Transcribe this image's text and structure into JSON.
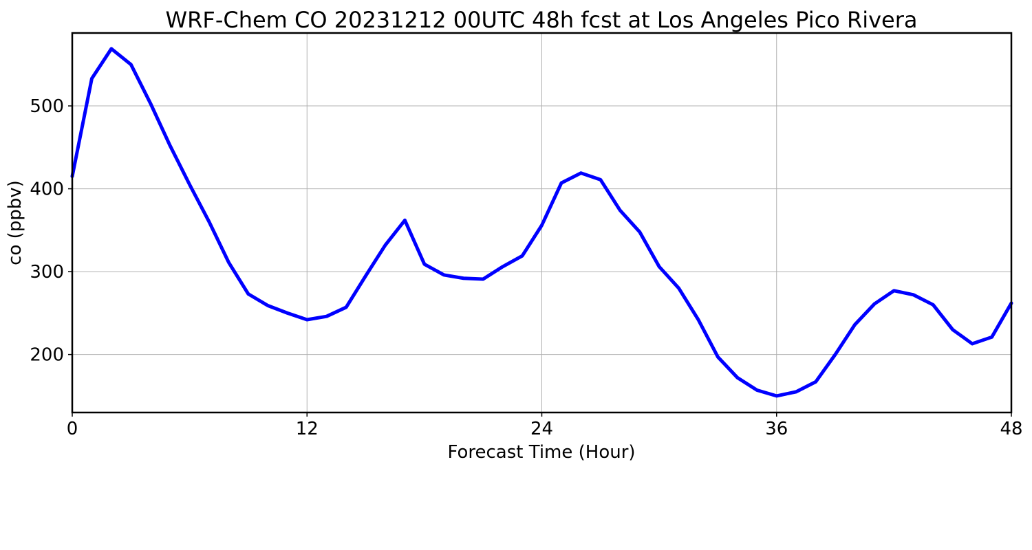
{
  "chart_data": {
    "type": "line",
    "title": "WRF-Chem CO  20231212 00UTC 48h fcst at Los Angeles Pico Rivera",
    "xlabel": "Forecast Time (Hour)",
    "ylabel": "co  (ppbv)",
    "xlim": [
      0,
      48
    ],
    "ylim": [
      130,
      588
    ],
    "xticks": [
      0,
      12,
      24,
      36,
      48
    ],
    "yticks": [
      200,
      300,
      400,
      500
    ],
    "grid": true,
    "line_color": "#0000ff",
    "series": [
      {
        "x": [
          0,
          1,
          2,
          3,
          4,
          5,
          6,
          7,
          8,
          9,
          10,
          11,
          12,
          13,
          14,
          15,
          16,
          17,
          18,
          19,
          20,
          21,
          22,
          23,
          24,
          25,
          26,
          27,
          28,
          29,
          30,
          31,
          32,
          33,
          34,
          35,
          36,
          37,
          38,
          39,
          40,
          41,
          42,
          43,
          44,
          45,
          46,
          47,
          48
        ],
        "values": [
          415,
          533,
          569,
          550,
          503,
          452,
          405,
          360,
          311,
          273,
          259,
          250,
          242,
          246,
          257,
          295,
          332,
          362,
          309,
          296,
          292,
          291,
          306,
          319,
          356,
          407,
          419,
          411,
          374,
          348,
          306,
          280,
          242,
          197,
          172,
          157,
          150,
          155,
          167,
          200,
          236,
          261,
          277,
          272,
          260,
          230,
          213,
          221,
          262
        ]
      }
    ]
  }
}
